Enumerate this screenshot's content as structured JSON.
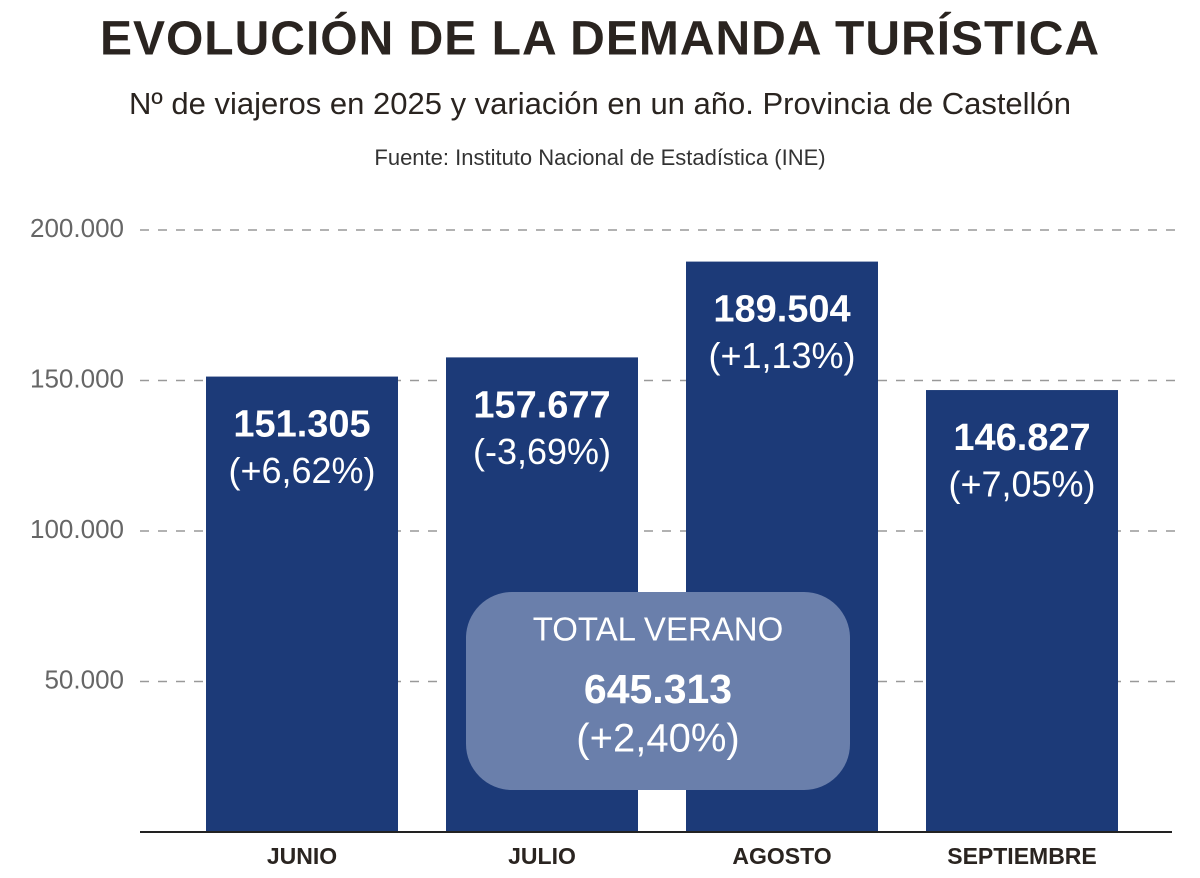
{
  "chart_data": {
    "type": "bar",
    "title": "EVOLUCIÓN DE LA DEMANDA TURÍSTICA",
    "subtitle": "Nº de viajeros en 2025 y variación en un año. Provincia de Castellón",
    "source": "Fuente: Instituto Nacional de Estadística (INE)",
    "categories": [
      "JUNIO",
      "JULIO",
      "AGOSTO",
      "SEPTIEMBRE"
    ],
    "values": [
      151305,
      157677,
      189504,
      146827
    ],
    "value_labels": [
      "151.305",
      "157.677",
      "189.504",
      "146.827"
    ],
    "variation": {
      "values": [
        6.62,
        -3.69,
        1.13,
        7.05
      ],
      "value_labels": [
        "(+6,62%)",
        "(-3,69%)",
        "(+1,13%)",
        "(+7,05%)"
      ]
    },
    "color": "#1c3a78",
    "ylim": [
      0,
      200000
    ],
    "yticks": [
      {
        "value": 50000,
        "label": "50.000"
      },
      {
        "value": 100000,
        "label": "100.000"
      },
      {
        "value": 150000,
        "label": "150.000"
      },
      {
        "value": 200000,
        "label": "200.000"
      }
    ],
    "grid": true,
    "total": {
      "label": "TOTAL VERANO",
      "value": 645313,
      "value_label": "645.313",
      "variation": 2.4,
      "variation_label": "(+2,40%)"
    }
  }
}
